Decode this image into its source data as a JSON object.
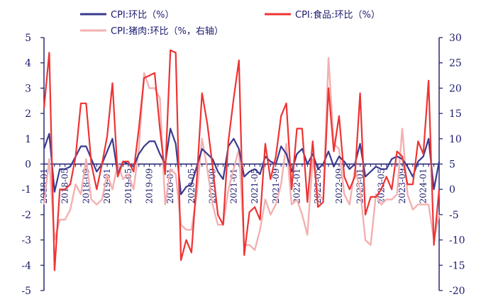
{
  "chart_data": {
    "type": "line",
    "legend": [
      {
        "name": "CPI:环比（%）",
        "color": "#3a3a8f"
      },
      {
        "name": "CPI:食品:环比（%）",
        "color": "#ee3333"
      },
      {
        "name": "CPI:猪肉:环比（%，右轴）",
        "color": "#f4b0b0"
      }
    ],
    "left_axis": {
      "min": -5,
      "max": 5,
      "ticks": [
        "-5",
        "-4",
        "-3",
        "-2",
        "-1",
        "0",
        "1",
        "2",
        "3",
        "4",
        "5"
      ]
    },
    "right_axis": {
      "min": -20,
      "max": 30,
      "ticks": [
        "-20",
        "-15",
        "-10",
        "-5",
        "0",
        "5",
        "10",
        "15",
        "20",
        "25",
        "30"
      ]
    },
    "x_tick_labels": [
      "2018-01",
      "2018-05",
      "2018-09",
      "2019-01",
      "2019-05",
      "2019-09",
      "2020-01",
      "2020-05",
      "2020-09",
      "2021-01",
      "2021-05",
      "2021-09",
      "2022-01",
      "2022-05",
      "2022-09",
      "2023-01",
      "2023-05",
      "2023-09",
      "2024-01"
    ],
    "x": [
      "2018-01",
      "2018-02",
      "2018-03",
      "2018-04",
      "2018-05",
      "2018-06",
      "2018-07",
      "2018-08",
      "2018-09",
      "2018-10",
      "2018-11",
      "2018-12",
      "2019-01",
      "2019-02",
      "2019-03",
      "2019-04",
      "2019-05",
      "2019-06",
      "2019-07",
      "2019-08",
      "2019-09",
      "2019-10",
      "2019-11",
      "2019-12",
      "2020-01",
      "2020-02",
      "2020-03",
      "2020-04",
      "2020-05",
      "2020-06",
      "2020-07",
      "2020-08",
      "2020-09",
      "2020-10",
      "2020-11",
      "2020-12",
      "2021-01",
      "2021-02",
      "2021-03",
      "2021-04",
      "2021-05",
      "2021-06",
      "2021-07",
      "2021-08",
      "2021-09",
      "2021-10",
      "2021-11",
      "2021-12",
      "2022-01",
      "2022-02",
      "2022-03",
      "2022-04",
      "2022-05",
      "2022-06",
      "2022-07",
      "2022-08",
      "2022-09",
      "2022-10",
      "2022-11",
      "2022-12",
      "2023-01",
      "2023-02",
      "2023-03",
      "2023-04",
      "2023-05",
      "2023-06",
      "2023-07",
      "2023-08",
      "2023-09",
      "2023-10",
      "2023-11",
      "2023-12",
      "2024-01",
      "2024-02",
      "2024-03",
      "2024-04"
    ],
    "series": [
      {
        "name": "CPI:环比（%）",
        "axis": "left",
        "color": "#3a3a8f",
        "values": [
          0.6,
          1.2,
          -1.1,
          -0.2,
          -0.2,
          -0.1,
          0.3,
          0.7,
          0.7,
          0.2,
          -0.3,
          0.0,
          0.5,
          1.0,
          -0.4,
          0.1,
          0.0,
          -0.1,
          0.4,
          0.7,
          0.9,
          0.9,
          0.4,
          0.0,
          1.4,
          0.8,
          -1.2,
          -0.9,
          -0.8,
          -0.1,
          0.6,
          0.4,
          0.2,
          -0.3,
          -0.6,
          0.7,
          1.0,
          0.6,
          -0.5,
          -0.3,
          -0.2,
          -0.4,
          0.3,
          0.1,
          0.0,
          0.7,
          0.4,
          -0.3,
          0.4,
          0.6,
          0.0,
          0.4,
          -0.2,
          0.0,
          0.5,
          -0.1,
          0.3,
          0.1,
          -0.2,
          0.0,
          0.8,
          -0.5,
          -0.3,
          -0.1,
          -0.2,
          -0.2,
          0.2,
          0.3,
          0.2,
          -0.1,
          -0.5,
          0.1,
          0.3,
          1.0,
          -1.0,
          0.1
        ]
      },
      {
        "name": "CPI:食品:环比（%）",
        "axis": "left",
        "color": "#ee3333",
        "values": [
          2.2,
          4.4,
          -4.2,
          -1.0,
          -1.0,
          -0.8,
          0.3,
          2.4,
          2.4,
          0.0,
          -1.0,
          0.0,
          1.1,
          3.2,
          -0.5,
          0.1,
          0.1,
          -0.3,
          1.4,
          3.4,
          3.5,
          3.6,
          1.4,
          -0.4,
          4.5,
          4.4,
          -3.8,
          -3.0,
          -3.5,
          -0.6,
          2.8,
          1.6,
          -0.1,
          -2.0,
          -2.4,
          0.9,
          2.6,
          4.1,
          -3.6,
          -1.9,
          -1.7,
          -2.2,
          0.8,
          -0.6,
          0.3,
          1.9,
          2.4,
          -1.0,
          1.4,
          1.4,
          -1.5,
          0.9,
          -1.7,
          -1.5,
          3.0,
          0.5,
          1.9,
          -0.5,
          -1.0,
          -0.5,
          2.8,
          -2.0,
          -1.3,
          -1.3,
          -1.0,
          -0.5,
          -1.0,
          0.5,
          0.3,
          -0.8,
          -0.8,
          0.9,
          0.4,
          3.3,
          -3.2,
          -1.0
        ]
      },
      {
        "name": "CPI:猪肉:环比（%，右轴）",
        "axis": "right",
        "color": "#f4b0b0",
        "values": [
          -3,
          6,
          -10,
          -6,
          -6,
          -4,
          1,
          -1,
          6,
          -2,
          -3,
          -2,
          3,
          0,
          5,
          2,
          3,
          0,
          8,
          23,
          20,
          20,
          18,
          -3,
          4,
          3,
          -7,
          -8,
          -8,
          -1,
          10,
          4,
          -3,
          -7,
          -7,
          0,
          4,
          8,
          -11,
          -11,
          -12,
          -8,
          -2,
          -5,
          -3,
          1,
          9,
          -3,
          -2,
          -5,
          -9,
          6,
          -1,
          -2,
          26,
          9,
          8,
          -1,
          -3,
          4,
          0,
          -10,
          -11,
          -1,
          -3,
          -2,
          -2,
          -1,
          12,
          -1,
          -4,
          -3,
          -3,
          -3,
          -10,
          -5
        ]
      }
    ]
  }
}
